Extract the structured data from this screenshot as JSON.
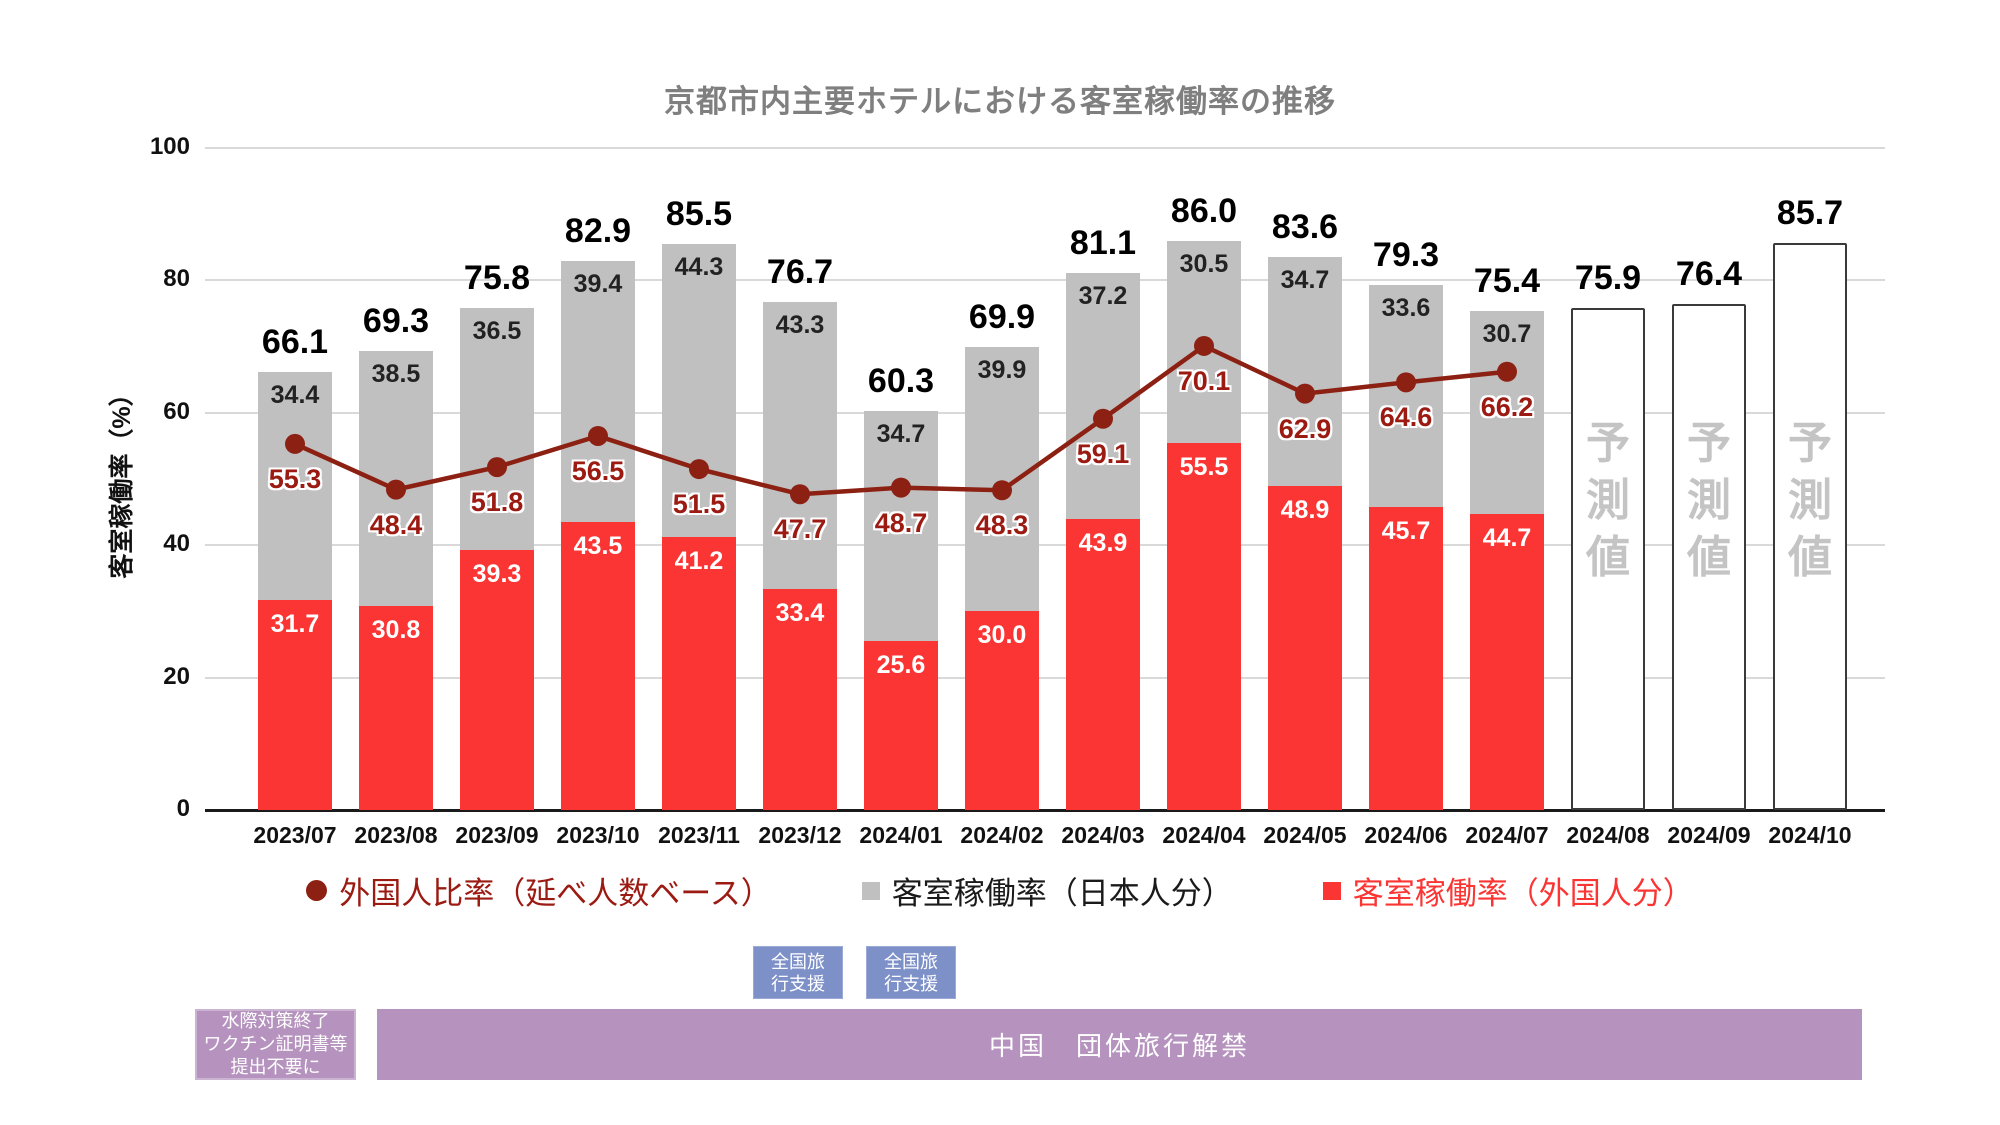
{
  "title": "京都市内主要ホテルにおける客室稼働率の推移",
  "y_axis": {
    "label": "客室稼働率（%）",
    "ticks": [
      0,
      20,
      40,
      60,
      80,
      100
    ],
    "max": 100
  },
  "chart_data": {
    "type": "bar",
    "subtype": "stacked-bar-with-line",
    "title": "京都市内主要ホテルにおける客室稼働率の推移",
    "xlabel": "",
    "ylabel": "客室稼働率（%）",
    "ylim": [
      0,
      100
    ],
    "grid": true,
    "legend_position": "bottom",
    "categories": [
      "2023/07",
      "2023/08",
      "2023/09",
      "2023/10",
      "2023/11",
      "2023/12",
      "2024/01",
      "2024/02",
      "2024/03",
      "2024/04",
      "2024/05",
      "2024/06",
      "2024/07",
      "2024/08",
      "2024/09",
      "2024/10"
    ],
    "series": [
      {
        "name": "客室稼働率（外国人分）",
        "type": "bar-stack",
        "color": "#FA3533",
        "values": [
          31.7,
          30.8,
          39.3,
          43.5,
          41.2,
          33.4,
          25.6,
          30.0,
          43.9,
          55.5,
          48.9,
          45.7,
          44.7,
          null,
          null,
          null
        ]
      },
      {
        "name": "客室稼働率（日本人分）",
        "type": "bar-stack",
        "color": "#C0C0C0",
        "values": [
          34.4,
          38.5,
          36.5,
          39.4,
          44.3,
          43.3,
          34.7,
          39.9,
          37.2,
          30.5,
          34.7,
          33.6,
          30.7,
          null,
          null,
          null
        ]
      },
      {
        "name": "外国人比率（延べ人数ベース）",
        "type": "line",
        "color": "#8C2012",
        "values": [
          55.3,
          48.4,
          51.8,
          56.5,
          51.5,
          47.7,
          48.7,
          48.3,
          59.1,
          70.1,
          62.9,
          64.6,
          66.2,
          null,
          null,
          null
        ]
      }
    ],
    "stack_totals": [
      66.1,
      69.3,
      75.8,
      82.9,
      85.5,
      76.7,
      60.3,
      69.9,
      81.1,
      86.0,
      83.6,
      79.3,
      75.4,
      null,
      null,
      null
    ],
    "forecast_values": [
      null,
      null,
      null,
      null,
      null,
      null,
      null,
      null,
      null,
      null,
      null,
      null,
      null,
      75.9,
      76.4,
      85.7
    ],
    "forecast_label": "予測値"
  },
  "legend": {
    "items": [
      {
        "label": "外国人比率（延べ人数ベース）",
        "marker": "dot-icon",
        "color": "#8C2012"
      },
      {
        "label": "客室稼働率（日本人分）",
        "marker": "square-icon",
        "color": "#C0C0C0"
      },
      {
        "label": "客室稼働率（外国人分）",
        "marker": "square-icon",
        "color": "#FA3533"
      }
    ]
  },
  "annotations": {
    "travel_support": "全国旅\n行支援",
    "border_measures_end": "水際対策終了\nワクチン証明書等\n提出不要に",
    "china_group_travel": "中国　団体旅行解禁"
  }
}
